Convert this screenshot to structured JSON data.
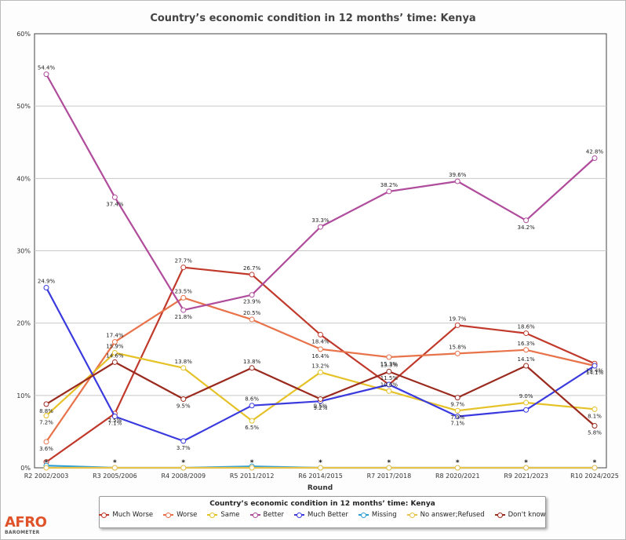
{
  "title": "Country’s economic condition in 12 months’ time: Kenya",
  "legend_title": "Country’s economic condition in 12 months’ time: Kenya",
  "logo": {
    "main": "AFRO",
    "sub": "BAROMETER"
  },
  "chart_data": {
    "type": "line",
    "xlabel": "Round",
    "ylabel": "",
    "ylim": [
      0,
      60
    ],
    "y_ticks": [
      "0%",
      "10%",
      "20%",
      "30%",
      "40%",
      "50%",
      "60%"
    ],
    "grid": true,
    "legend_position": "bottom",
    "categories": [
      "R2 2002/2003",
      "R3 2005/2006",
      "R4 2008/2009",
      "R5 2011/2012",
      "R6 2014/2015",
      "R7 2017/2018",
      "R8 2020/2021",
      "R9 2021/2023",
      "R10 2024/2025"
    ],
    "star_marker": "*",
    "series": [
      {
        "name": "Much Worse",
        "color": "#c0392b",
        "values": [
          0.8,
          7.5,
          27.7,
          26.7,
          18.4,
          11.5,
          19.7,
          18.6,
          14.4
        ],
        "labels": [
          "",
          "7.5%",
          "27.7%",
          "26.7%",
          "18.4%",
          "",
          "19.7%",
          "18.6%",
          "14.4%"
        ]
      },
      {
        "name": "Worse",
        "color": "#e8734a",
        "values": [
          3.6,
          17.4,
          23.5,
          20.5,
          16.4,
          15.3,
          15.8,
          16.3,
          14.1
        ],
        "labels": [
          "3.6%",
          "17.4%",
          "23.5%",
          "20.5%",
          "16.4%",
          "15.3%",
          "15.8%",
          "16.3%",
          "14.1%"
        ]
      },
      {
        "name": "Same",
        "color": "#e6c229",
        "values": [
          7.2,
          15.9,
          13.8,
          6.5,
          13.2,
          10.6,
          7.9,
          9.0,
          8.1
        ],
        "labels": [
          "7.2%",
          "15.9%",
          "13.8%",
          "6.5%",
          "13.2%",
          "10.6%",
          "7.9%",
          "9.0%",
          "8.1%"
        ]
      },
      {
        "name": "Better",
        "color": "#b04c9c",
        "values": [
          54.4,
          37.4,
          21.8,
          23.9,
          33.3,
          38.2,
          39.6,
          34.2,
          42.8
        ],
        "labels": [
          "54.4%",
          "37.4%",
          "21.8%",
          "23.9%",
          "33.3%",
          "38.2%",
          "39.6%",
          "34.2%",
          "42.8%"
        ]
      },
      {
        "name": "Much Better",
        "color": "#3a3adf",
        "values": [
          24.9,
          7.1,
          3.7,
          8.6,
          9.2,
          11.5,
          7.1,
          8.0,
          14.1
        ],
        "labels": [
          "24.9%",
          "7.1%",
          "3.7%",
          "8.6%",
          "9.2%",
          "11.5%",
          "7.1%",
          "",
          ""
        ]
      },
      {
        "name": "Missing",
        "color": "#2a9fd6",
        "values": [
          0.3,
          0.0,
          0.0,
          0.2,
          0.0,
          0.0,
          0.0,
          0.0,
          0.0
        ],
        "labels": [
          "",
          "",
          "",
          "",
          "",
          "",
          "",
          "",
          ""
        ]
      },
      {
        "name": "No answer;Refused",
        "color": "#e8c24a",
        "values": [
          0.0,
          0.0,
          0.0,
          0.0,
          0.0,
          0.0,
          0.0,
          0.0,
          0.0
        ],
        "labels": [
          "",
          "",
          "",
          "",
          "",
          "",
          "",
          "",
          ""
        ]
      },
      {
        "name": "Don't know",
        "color": "#9b2a1e",
        "values": [
          8.8,
          14.6,
          9.5,
          13.8,
          9.5,
          13.3,
          9.7,
          14.1,
          5.8
        ],
        "labels": [
          "8.8%",
          "14.6%",
          "9.5%",
          "13.8%",
          "9.5%",
          "13.3%",
          "9.7%",
          "14.1%",
          "5.8%"
        ]
      }
    ]
  }
}
